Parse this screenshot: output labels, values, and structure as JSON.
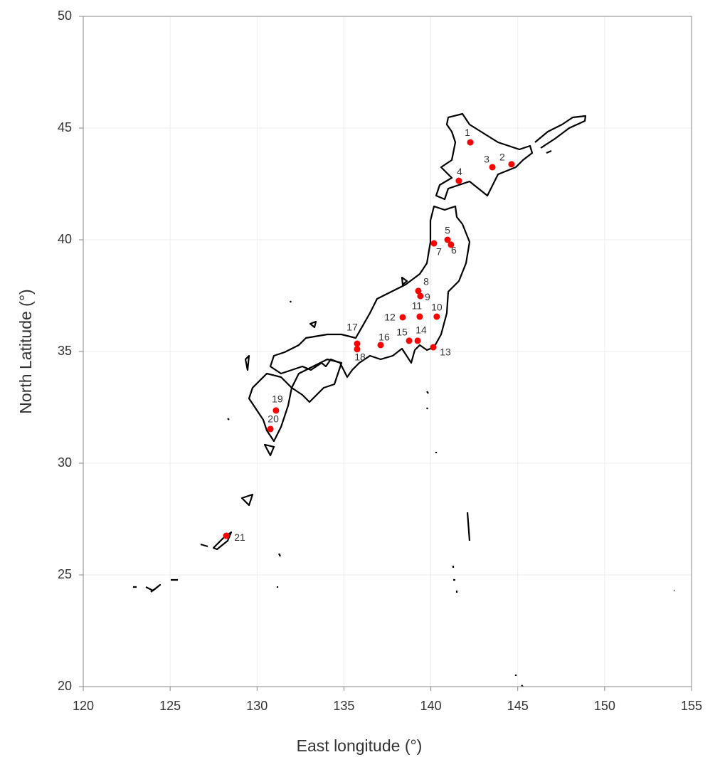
{
  "chart_data": {
    "type": "scatter",
    "xlabel": "East longitude (°)",
    "ylabel": "North Latitude (°)",
    "xlim": [
      120,
      155
    ],
    "xticks": [
      120,
      125,
      130,
      135,
      140,
      145,
      150,
      155
    ],
    "ylim": [
      20,
      50
    ],
    "yticks": [
      20,
      25,
      30,
      35,
      40,
      45,
      50
    ],
    "grid": true,
    "color": "#ff0000",
    "point_labels": [
      "1",
      "2",
      "3",
      "4",
      "5",
      "6",
      "7",
      "8",
      "9",
      "10",
      "11",
      "12",
      "13",
      "14",
      "15",
      "16",
      "17",
      "18",
      "19",
      "20",
      "21"
    ],
    "x": [
      142.27,
      144.64,
      143.54,
      141.61,
      140.96,
      141.16,
      140.18,
      139.28,
      139.4,
      140.34,
      139.36,
      138.38,
      140.14,
      139.24,
      138.75,
      137.11,
      135.76,
      135.76,
      131.09,
      130.77,
      128.23
    ],
    "y": [
      44.36,
      43.38,
      43.25,
      42.64,
      40.0,
      39.78,
      39.84,
      37.71,
      37.48,
      36.56,
      36.56,
      36.53,
      35.19,
      35.48,
      35.48,
      35.29,
      35.35,
      35.1,
      32.36,
      31.53,
      26.75
    ]
  }
}
